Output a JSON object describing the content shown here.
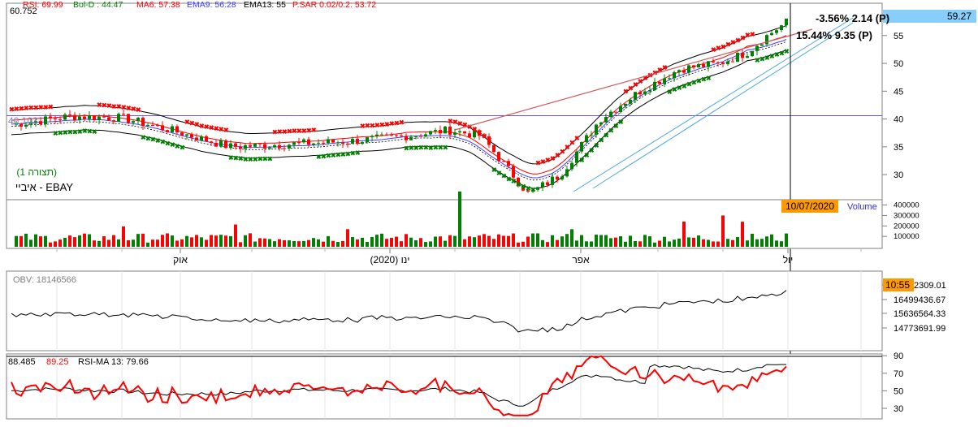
{
  "instrument": {
    "name": "איביי - EBAY",
    "display_note": "(תצורה 1)"
  },
  "price_panel": {
    "header_left": "60.752",
    "indicator_labels": [
      {
        "text": "RSI: 69.99",
        "color": "#ff0000"
      },
      {
        "text": "Bol-D : 44.47",
        "color": "#008000"
      },
      {
        "text": "MA6: 57.38",
        "color": "#ff0000"
      },
      {
        "text": "EMA9: 56.28",
        "color": "#4040ff"
      },
      {
        "text": "EMA13: 55",
        "color": "#000000"
      },
      {
        "text": "P.SAR 0.02/0.2: 53.72",
        "color": "#ff0000"
      }
    ],
    "last_price_badge": "59.27",
    "left_level_label": "40.103",
    "annotation_1": "-3.56% 2.14 (P)",
    "annotation_2": "15.44% 9.35 (P)",
    "y_ticks": [
      "55",
      "50",
      "45",
      "40",
      "35",
      "30"
    ],
    "y_values": [
      55,
      50,
      45,
      40,
      35,
      30
    ],
    "y_range": [
      25.5,
      60.8
    ]
  },
  "volume_panel": {
    "title": "Volume",
    "date_badge": "10/07/2020",
    "y_ticks": [
      "400000",
      "300000",
      "200000",
      "100000"
    ]
  },
  "time_axis": {
    "labels": [
      "אוק",
      "ינו (2020)",
      "אפר",
      "יול"
    ]
  },
  "obv_panel": {
    "label": "OBV: 18146566",
    "time_badge": "10:55",
    "y_ticks": [
      "17362309.01",
      "16499436.67",
      "15636564.33",
      "14773691.99"
    ]
  },
  "rsi_panel": {
    "value_left": "88.485",
    "value_rsi": "89.25",
    "label_ma": "RSI-MA 13: 79.66",
    "y_ticks": [
      "90",
      "70",
      "50",
      "30"
    ],
    "y_values": [
      90,
      70,
      50,
      30
    ]
  },
  "colors": {
    "up": "#008000",
    "down": "#ff0000",
    "badge_price": "#87cefa",
    "badge_date": "#ff9900",
    "trend_line": "#cd5c5c",
    "level_line": "#6a5acd"
  }
}
